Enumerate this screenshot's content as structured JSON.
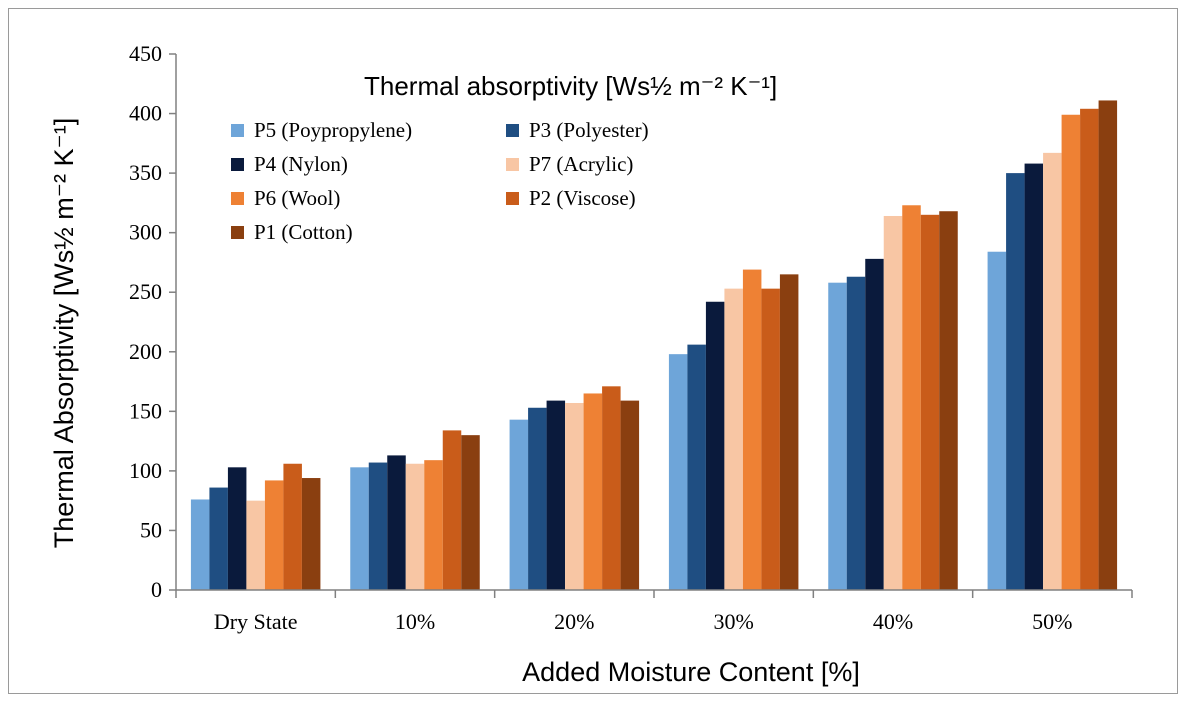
{
  "chart_data": {
    "type": "bar",
    "title": "Thermal absorptivity [Ws½ m⁻² K⁻¹]",
    "xlabel": "Added Moisture Content [%]",
    "ylabel": "Thermal Absorptivity [Ws½ m⁻² K⁻¹]",
    "ylim": [
      0,
      450
    ],
    "ytick_step": 50,
    "grid": false,
    "legend_position": "top-left",
    "categories": [
      "Dry State",
      "10%",
      "20%",
      "30%",
      "40%",
      "50%"
    ],
    "series": [
      {
        "name": "P5 (Poypropylene)",
        "color": "#6ea5d9",
        "values": [
          76,
          103,
          143,
          198,
          258,
          284
        ]
      },
      {
        "name": "P3 (Polyester)",
        "color": "#1f4e82",
        "values": [
          86,
          107,
          153,
          206,
          263,
          350
        ]
      },
      {
        "name": "P4 (Nylon)",
        "color": "#0a1a3c",
        "values": [
          103,
          113,
          159,
          242,
          278,
          358
        ]
      },
      {
        "name": "P7 (Acrylic)",
        "color": "#f8c6a4",
        "values": [
          75,
          106,
          157,
          253,
          314,
          367
        ]
      },
      {
        "name": "P6 (Wool)",
        "color": "#ee8134",
        "values": [
          92,
          109,
          165,
          269,
          323,
          399
        ]
      },
      {
        "name": "P2 (Viscose)",
        "color": "#c95c1a",
        "values": [
          106,
          134,
          171,
          253,
          315,
          404
        ]
      },
      {
        "name": "P1 (Cotton)",
        "color": "#8a3f10",
        "values": [
          94,
          130,
          159,
          265,
          318,
          411
        ]
      }
    ]
  }
}
